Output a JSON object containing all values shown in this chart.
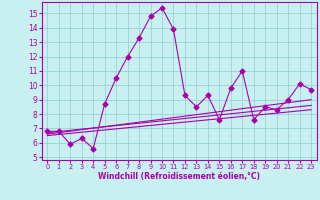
{
  "xlabel": "Windchill (Refroidissement éolien,°C)",
  "xlim": [
    -0.5,
    23.5
  ],
  "ylim": [
    4.8,
    15.8
  ],
  "yticks": [
    5,
    6,
    7,
    8,
    9,
    10,
    11,
    12,
    13,
    14,
    15
  ],
  "xticks": [
    0,
    1,
    2,
    3,
    4,
    5,
    6,
    7,
    8,
    9,
    10,
    11,
    12,
    13,
    14,
    15,
    16,
    17,
    18,
    19,
    20,
    21,
    22,
    23
  ],
  "background_color": "#c8f0f0",
  "grid_color": "#98d4d4",
  "line_color": "#aa00aa",
  "curve_x": [
    0,
    1,
    2,
    3,
    4,
    5,
    6,
    7,
    8,
    9,
    10,
    11,
    12,
    13,
    14,
    15,
    16,
    17,
    18,
    19,
    20,
    21,
    22,
    23
  ],
  "curve_y": [
    6.8,
    6.8,
    5.9,
    6.3,
    5.6,
    8.7,
    10.5,
    12.0,
    13.3,
    14.8,
    15.4,
    13.9,
    9.3,
    8.5,
    9.3,
    7.6,
    9.8,
    11.0,
    7.6,
    8.5,
    8.3,
    9.0,
    10.1,
    9.7
  ],
  "line1_x": [
    0,
    23
  ],
  "line1_y": [
    6.6,
    9.0
  ],
  "line2_x": [
    0,
    23
  ],
  "line2_y": [
    6.5,
    8.3
  ],
  "line3_x": [
    0,
    23
  ],
  "line3_y": [
    6.7,
    8.6
  ]
}
